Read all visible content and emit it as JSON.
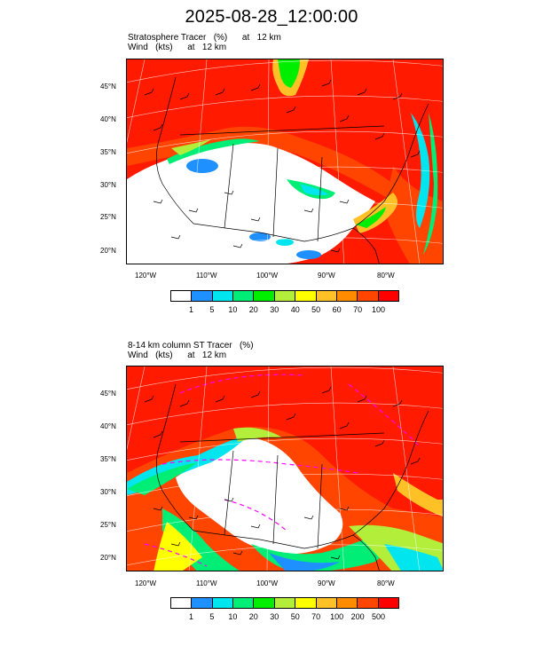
{
  "title": "2025-08-28_12:00:00",
  "panels": [
    {
      "id": "top",
      "label_line1": "Stratosphere Tracer   (%)      at   12 km",
      "label_line2": "Wind   (kts)      at   12 km",
      "lat_ticks": [
        "45°N",
        "40°N",
        "35°N",
        "30°N",
        "25°N",
        "20°N"
      ],
      "lon_ticks": [
        "120°W",
        "110°W",
        "100°W",
        "90°W",
        "80°W"
      ],
      "colorbar_labels": [
        "1",
        "5",
        "10",
        "20",
        "30",
        "40",
        "50",
        "60",
        "70",
        "100"
      ],
      "colorbar_colors": [
        "#ffffff",
        "#1e90ff",
        "#00e5ee",
        "#00ee76",
        "#00ee00",
        "#b3ee3a",
        "#ffff00",
        "#ffc125",
        "#ff8c00",
        "#ff4500",
        "#ff0000"
      ]
    },
    {
      "id": "bottom",
      "label_line1": "8-14 km column ST Tracer   (%)",
      "label_line2": "Wind   (kts)      at   12 km",
      "lat_ticks": [
        "45°N",
        "40°N",
        "35°N",
        "30°N",
        "25°N",
        "20°N"
      ],
      "lon_ticks": [
        "120°W",
        "110°W",
        "100°W",
        "90°W",
        "80°W"
      ],
      "colorbar_labels": [
        "1",
        "5",
        "10",
        "20",
        "30",
        "50",
        "70",
        "100",
        "200",
        "500"
      ],
      "colorbar_colors": [
        "#ffffff",
        "#1e90ff",
        "#00e5ee",
        "#00ee76",
        "#00ee00",
        "#b3ee3a",
        "#ffff00",
        "#ffc125",
        "#ff8c00",
        "#ff4500",
        "#ff0000"
      ]
    }
  ]
}
